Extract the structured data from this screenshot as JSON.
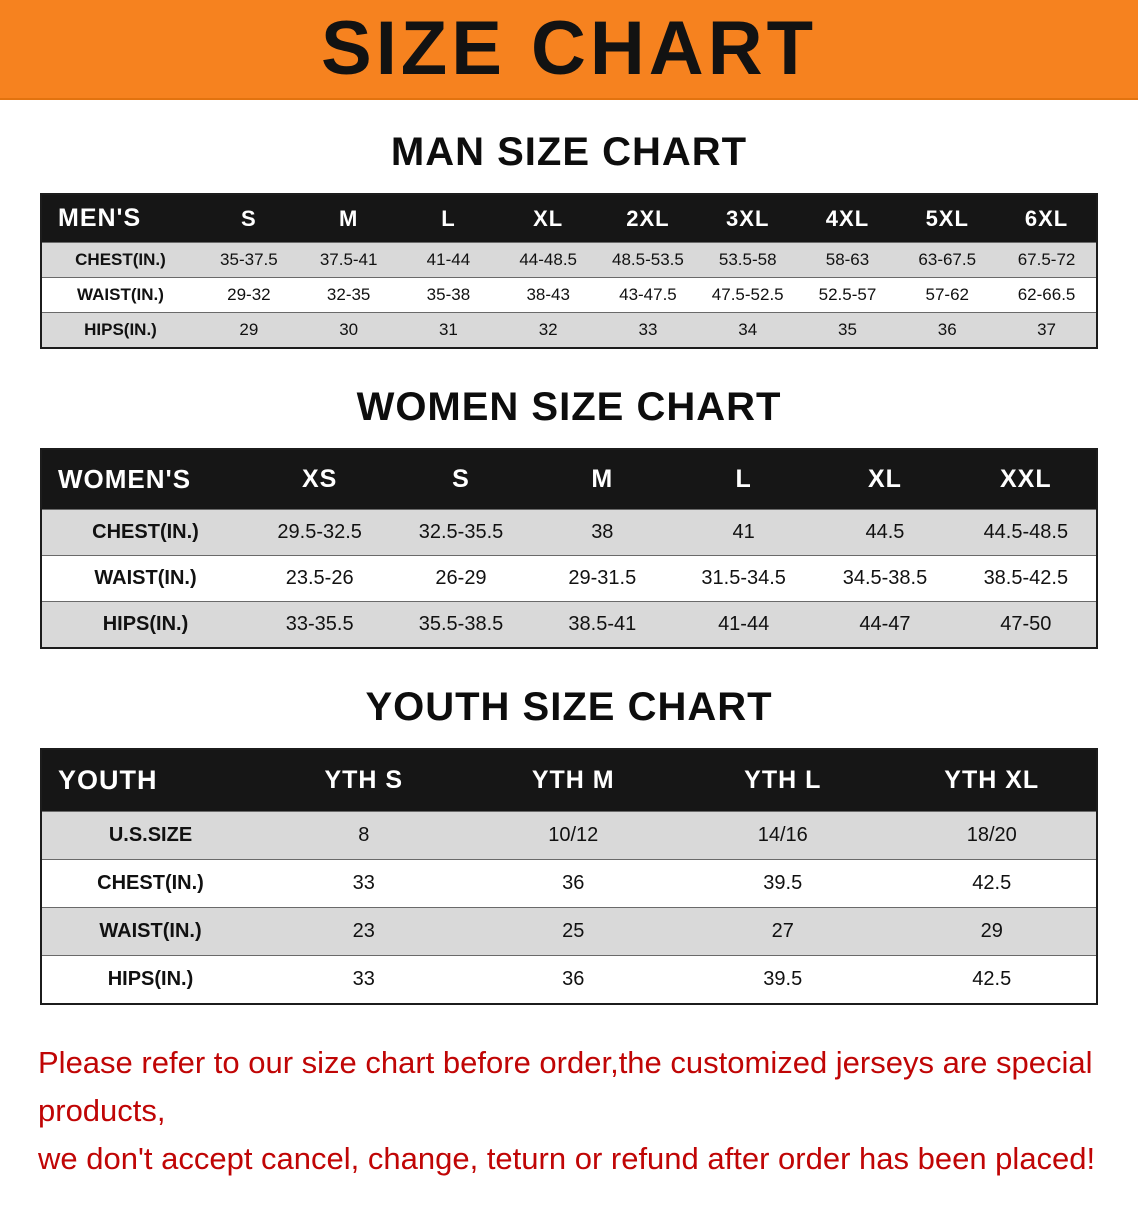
{
  "colors": {
    "banner-bg": "#f6821f",
    "note-red": "#c00505",
    "header-bg": "#161616",
    "row-gray": "#d9d9d9"
  },
  "banner": {
    "title": "SIZE CHART"
  },
  "sections": [
    {
      "heading": "MAN SIZE CHART",
      "table": {
        "header": [
          "MEN'S",
          "S",
          "M",
          "L",
          "XL",
          "2XL",
          "3XL",
          "4XL",
          "5XL",
          "6XL"
        ],
        "rows": [
          [
            "CHEST(IN.)",
            "35-37.5",
            "37.5-41",
            "41-44",
            "44-48.5",
            "48.5-53.5",
            "53.5-58",
            "58-63",
            "63-67.5",
            "67.5-72"
          ],
          [
            "WAIST(IN.)",
            "29-32",
            "32-35",
            "35-38",
            "38-43",
            "43-47.5",
            "47.5-52.5",
            "52.5-57",
            "57-62",
            "62-66.5"
          ],
          [
            "HIPS(IN.)",
            "29",
            "30",
            "31",
            "32",
            "33",
            "34",
            "35",
            "36",
            "37"
          ]
        ]
      }
    },
    {
      "heading": "WOMEN SIZE CHART",
      "table": {
        "header": [
          "WOMEN'S",
          "XS",
          "S",
          "M",
          "L",
          "XL",
          "XXL"
        ],
        "rows": [
          [
            "CHEST(IN.)",
            "29.5-32.5",
            "32.5-35.5",
            "38",
            "41",
            "44.5",
            "44.5-48.5"
          ],
          [
            "WAIST(IN.)",
            "23.5-26",
            "26-29",
            "29-31.5",
            "31.5-34.5",
            "34.5-38.5",
            "38.5-42.5"
          ],
          [
            "HIPS(IN.)",
            "33-35.5",
            "35.5-38.5",
            "38.5-41",
            "41-44",
            "44-47",
            "47-50"
          ]
        ]
      }
    },
    {
      "heading": "YOUTH SIZE CHART",
      "table": {
        "header": [
          "YOUTH",
          "YTH S",
          "YTH M",
          "YTH L",
          "YTH XL"
        ],
        "rows": [
          [
            "U.S.SIZE",
            "8",
            "10/12",
            "14/16",
            "18/20"
          ],
          [
            "CHEST(IN.)",
            "33",
            "36",
            "39.5",
            "42.5"
          ],
          [
            "WAIST(IN.)",
            "23",
            "25",
            "27",
            "29"
          ],
          [
            "HIPS(IN.)",
            "33",
            "36",
            "39.5",
            "42.5"
          ]
        ]
      }
    }
  ],
  "disclaimer": {
    "lines": [
      "Please refer to our size chart before order,the customized jerseys are special products,",
      "we don't accept cancel, change, teturn or refund after order has been placed!"
    ]
  }
}
